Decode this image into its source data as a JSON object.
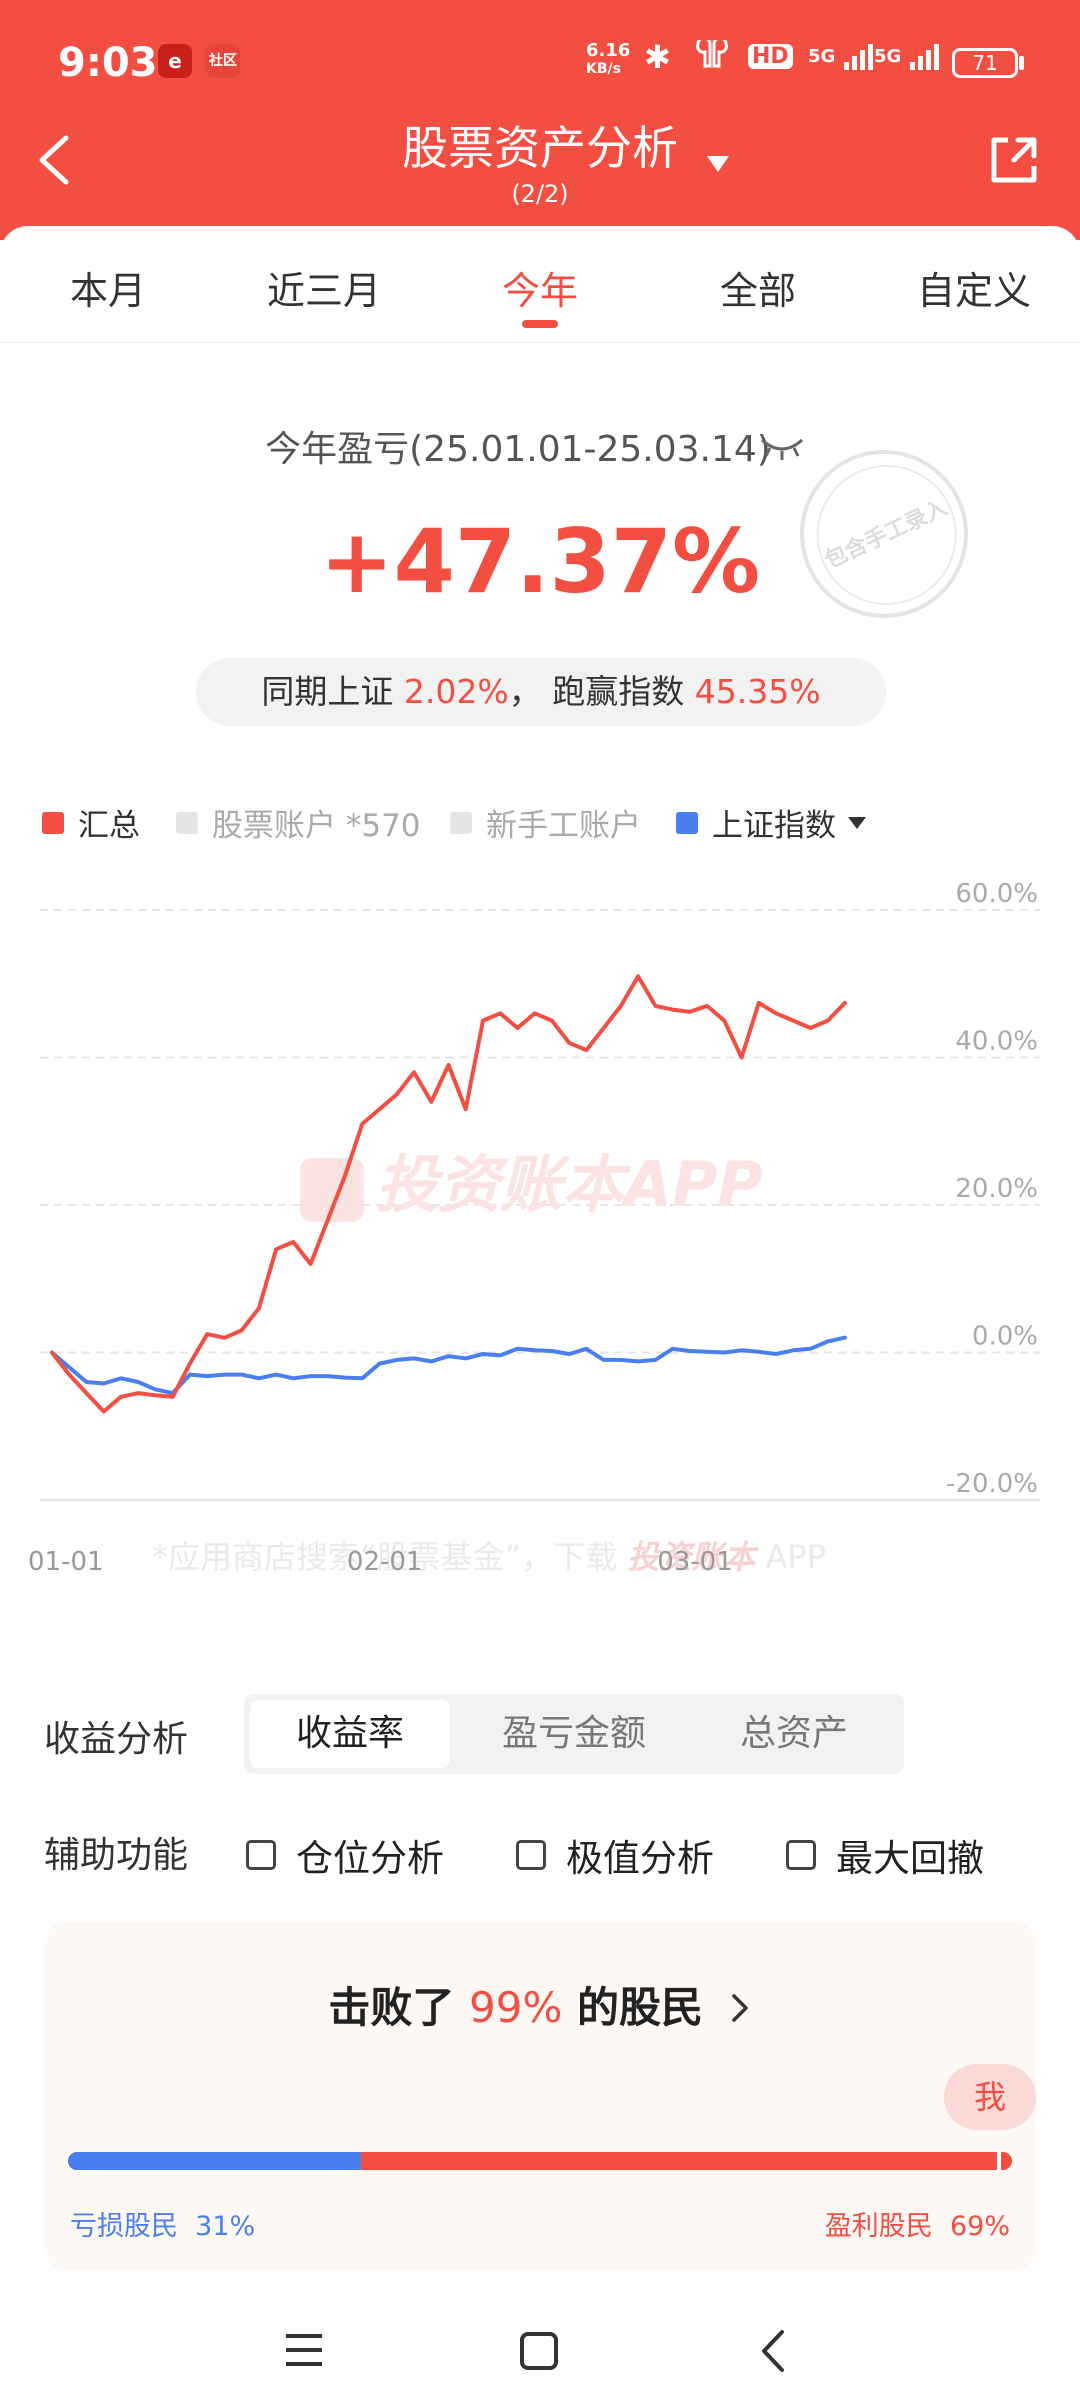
{
  "status": {
    "time": "9:03",
    "app_icon_1": "e",
    "app_icon_2": "社区",
    "net_speed": "6.16",
    "net_unit": "KB/s",
    "hd": "HD",
    "sig1": "5G",
    "sig2": "5G",
    "battery": "71"
  },
  "header": {
    "title": "股票资产分析",
    "subtitle": "(2/2)"
  },
  "tabs": [
    "本月",
    "近三月",
    "今年",
    "全部",
    "自定义"
  ],
  "summary": {
    "period_label": "今年盈亏(25.01.01-25.03.14)",
    "return_pct": "+47.37%",
    "compare_prefix": "同期上证",
    "compare_sh": "2.02%",
    "compare_sep": "，",
    "compare_mid": "跑赢指数",
    "compare_beat": "45.35%",
    "stamp_text": "包含手工录入"
  },
  "legend": [
    {
      "label": "汇总",
      "color": "#f24e41",
      "active": true
    },
    {
      "label": "股票账户 *570",
      "color": "#e5e5e5",
      "active": false
    },
    {
      "label": "新手工账户",
      "color": "#e5e5e5",
      "active": false
    },
    {
      "label": "上证指数",
      "color": "#4a7fef",
      "active": true
    }
  ],
  "chart_data": {
    "type": "line",
    "x": [
      "01-01",
      "01-02",
      "01-03",
      "01-06",
      "01-07",
      "01-08",
      "01-09",
      "01-10",
      "01-13",
      "01-14",
      "01-15",
      "01-16",
      "01-17",
      "01-20",
      "01-21",
      "01-22",
      "01-23",
      "01-24",
      "01-27",
      "02-05",
      "02-06",
      "02-07",
      "02-10",
      "02-11",
      "02-12",
      "02-13",
      "02-14",
      "02-17",
      "02-18",
      "02-19",
      "02-20",
      "02-21",
      "02-24",
      "02-25",
      "02-26",
      "02-27",
      "02-28",
      "03-03",
      "03-04",
      "03-05",
      "03-06",
      "03-07",
      "03-10",
      "03-11",
      "03-12",
      "03-13",
      "03-14"
    ],
    "x_ticks": [
      "01-01",
      "02-01",
      "03-01"
    ],
    "series": [
      {
        "name": "汇总",
        "color": "#f24e41",
        "values": [
          0,
          -3,
          -5.5,
          -8,
          -6,
          -5.5,
          -5.8,
          -6,
          -1.5,
          2.5,
          2,
          3,
          6,
          14,
          15,
          12,
          18,
          24,
          31,
          33,
          35,
          38,
          34,
          39,
          33,
          45,
          46,
          44,
          46,
          45,
          42,
          41,
          44,
          47,
          51,
          47,
          46.5,
          46.2,
          47,
          45,
          40,
          47.4,
          46,
          45,
          44,
          45,
          47.4
        ]
      },
      {
        "name": "上证指数",
        "color": "#4a7fef",
        "values": [
          0,
          -2,
          -4,
          -4.2,
          -3.5,
          -4,
          -5,
          -5.5,
          -3,
          -3.2,
          -3,
          -3,
          -3.5,
          -3,
          -3.5,
          -3.2,
          -3.2,
          -3.4,
          -3.5,
          -1.5,
          -1,
          -0.8,
          -1.2,
          -0.5,
          -0.8,
          -0.2,
          -0.4,
          0.5,
          0.3,
          0.2,
          -0.2,
          0.5,
          -1,
          -1,
          -1.2,
          -1,
          0.5,
          0.2,
          0.1,
          0,
          0.3,
          0.1,
          -0.2,
          0.3,
          0.5,
          1.5,
          2.02
        ]
      }
    ],
    "y_ticks": [
      "60.0%",
      "40.0%",
      "20.0%",
      "0.0%",
      "-20.0%"
    ],
    "ylim": [
      -20,
      60
    ],
    "watermark": "投资账本APP",
    "footnote": "*应用商店搜索“股票基金”，下载",
    "footnote_brand": "投资账本",
    "footnote_app": "APP",
    "grid": true
  },
  "analysis": {
    "label": "收益分析",
    "options": [
      "收益率",
      "盈亏金额",
      "总资产"
    ],
    "selected": "收益率"
  },
  "aux": {
    "label": "辅助功能",
    "options": [
      "仓位分析",
      "极值分析",
      "最大回撤"
    ]
  },
  "beat_card": {
    "prefix": "击败了",
    "pct": "99%",
    "suffix": "的股民",
    "me_label": "我",
    "loss_label": "亏损股民",
    "loss_pct": "31%",
    "loss_fraction": 0.31,
    "gain_label": "盈利股民",
    "gain_pct": "69%",
    "me_fraction": 0.99
  }
}
